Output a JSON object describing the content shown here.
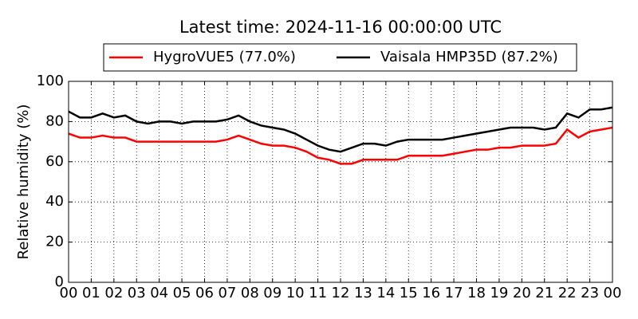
{
  "chart_data": {
    "type": "line",
    "title": "Latest time: 2024-11-16 00:00:00 UTC",
    "ylabel": "Relative humidity (%)",
    "x": [
      0,
      0.5,
      1,
      1.5,
      2,
      2.5,
      3,
      3.5,
      4,
      4.5,
      5,
      5.5,
      6,
      6.5,
      7,
      7.5,
      8,
      8.5,
      9,
      9.5,
      10,
      10.5,
      11,
      11.5,
      12,
      12.5,
      13,
      13.5,
      14,
      14.5,
      15,
      15.5,
      16,
      16.5,
      17,
      17.5,
      18,
      18.5,
      19,
      19.5,
      20,
      20.5,
      21,
      21.5,
      22,
      22.5,
      23,
      23.5,
      24
    ],
    "series": [
      {
        "name": "HygroVUE5 (77.0%)",
        "color": "#ff0000",
        "values": [
          74,
          72,
          72,
          73,
          72,
          72,
          70,
          70,
          70,
          70,
          70,
          70,
          70,
          70,
          71,
          73,
          71,
          69,
          68,
          68,
          67,
          65,
          62,
          61,
          59,
          59,
          61,
          61,
          61,
          61,
          63,
          63,
          63,
          63,
          64,
          65,
          66,
          66,
          67,
          67,
          68,
          68,
          68,
          69,
          76,
          72,
          75,
          76,
          77
        ]
      },
      {
        "name": "Vaisala HMP35D (87.2%)",
        "color": "#000000",
        "values": [
          85,
          82,
          82,
          84,
          82,
          83,
          80,
          79,
          80,
          80,
          79,
          80,
          80,
          80,
          81,
          83,
          80,
          78,
          77,
          76,
          74,
          71,
          68,
          66,
          65,
          67,
          69,
          69,
          68,
          70,
          71,
          71,
          71,
          71,
          72,
          73,
          74,
          75,
          76,
          77,
          77,
          77,
          76,
          77,
          84,
          82,
          86,
          86,
          87
        ]
      }
    ],
    "xlim": [
      0,
      24
    ],
    "xticks": [
      {
        "value": 0,
        "label": "00"
      },
      {
        "value": 1,
        "label": "01"
      },
      {
        "value": 2,
        "label": "02"
      },
      {
        "value": 3,
        "label": "03"
      },
      {
        "value": 4,
        "label": "04"
      },
      {
        "value": 5,
        "label": "05"
      },
      {
        "value": 6,
        "label": "06"
      },
      {
        "value": 7,
        "label": "07"
      },
      {
        "value": 8,
        "label": "08"
      },
      {
        "value": 9,
        "label": "09"
      },
      {
        "value": 10,
        "label": "10"
      },
      {
        "value": 11,
        "label": "11"
      },
      {
        "value": 12,
        "label": "12"
      },
      {
        "value": 13,
        "label": "13"
      },
      {
        "value": 14,
        "label": "14"
      },
      {
        "value": 15,
        "label": "15"
      },
      {
        "value": 16,
        "label": "16"
      },
      {
        "value": 17,
        "label": "17"
      },
      {
        "value": 18,
        "label": "18"
      },
      {
        "value": 19,
        "label": "19"
      },
      {
        "value": 20,
        "label": "20"
      },
      {
        "value": 21,
        "label": "21"
      },
      {
        "value": 22,
        "label": "22"
      },
      {
        "value": 23,
        "label": "23"
      },
      {
        "value": 24,
        "label": "00"
      }
    ],
    "ylim": [
      0,
      100
    ],
    "yticks": [
      0,
      20,
      40,
      60,
      80,
      100
    ],
    "grid": true,
    "legend": "top"
  }
}
